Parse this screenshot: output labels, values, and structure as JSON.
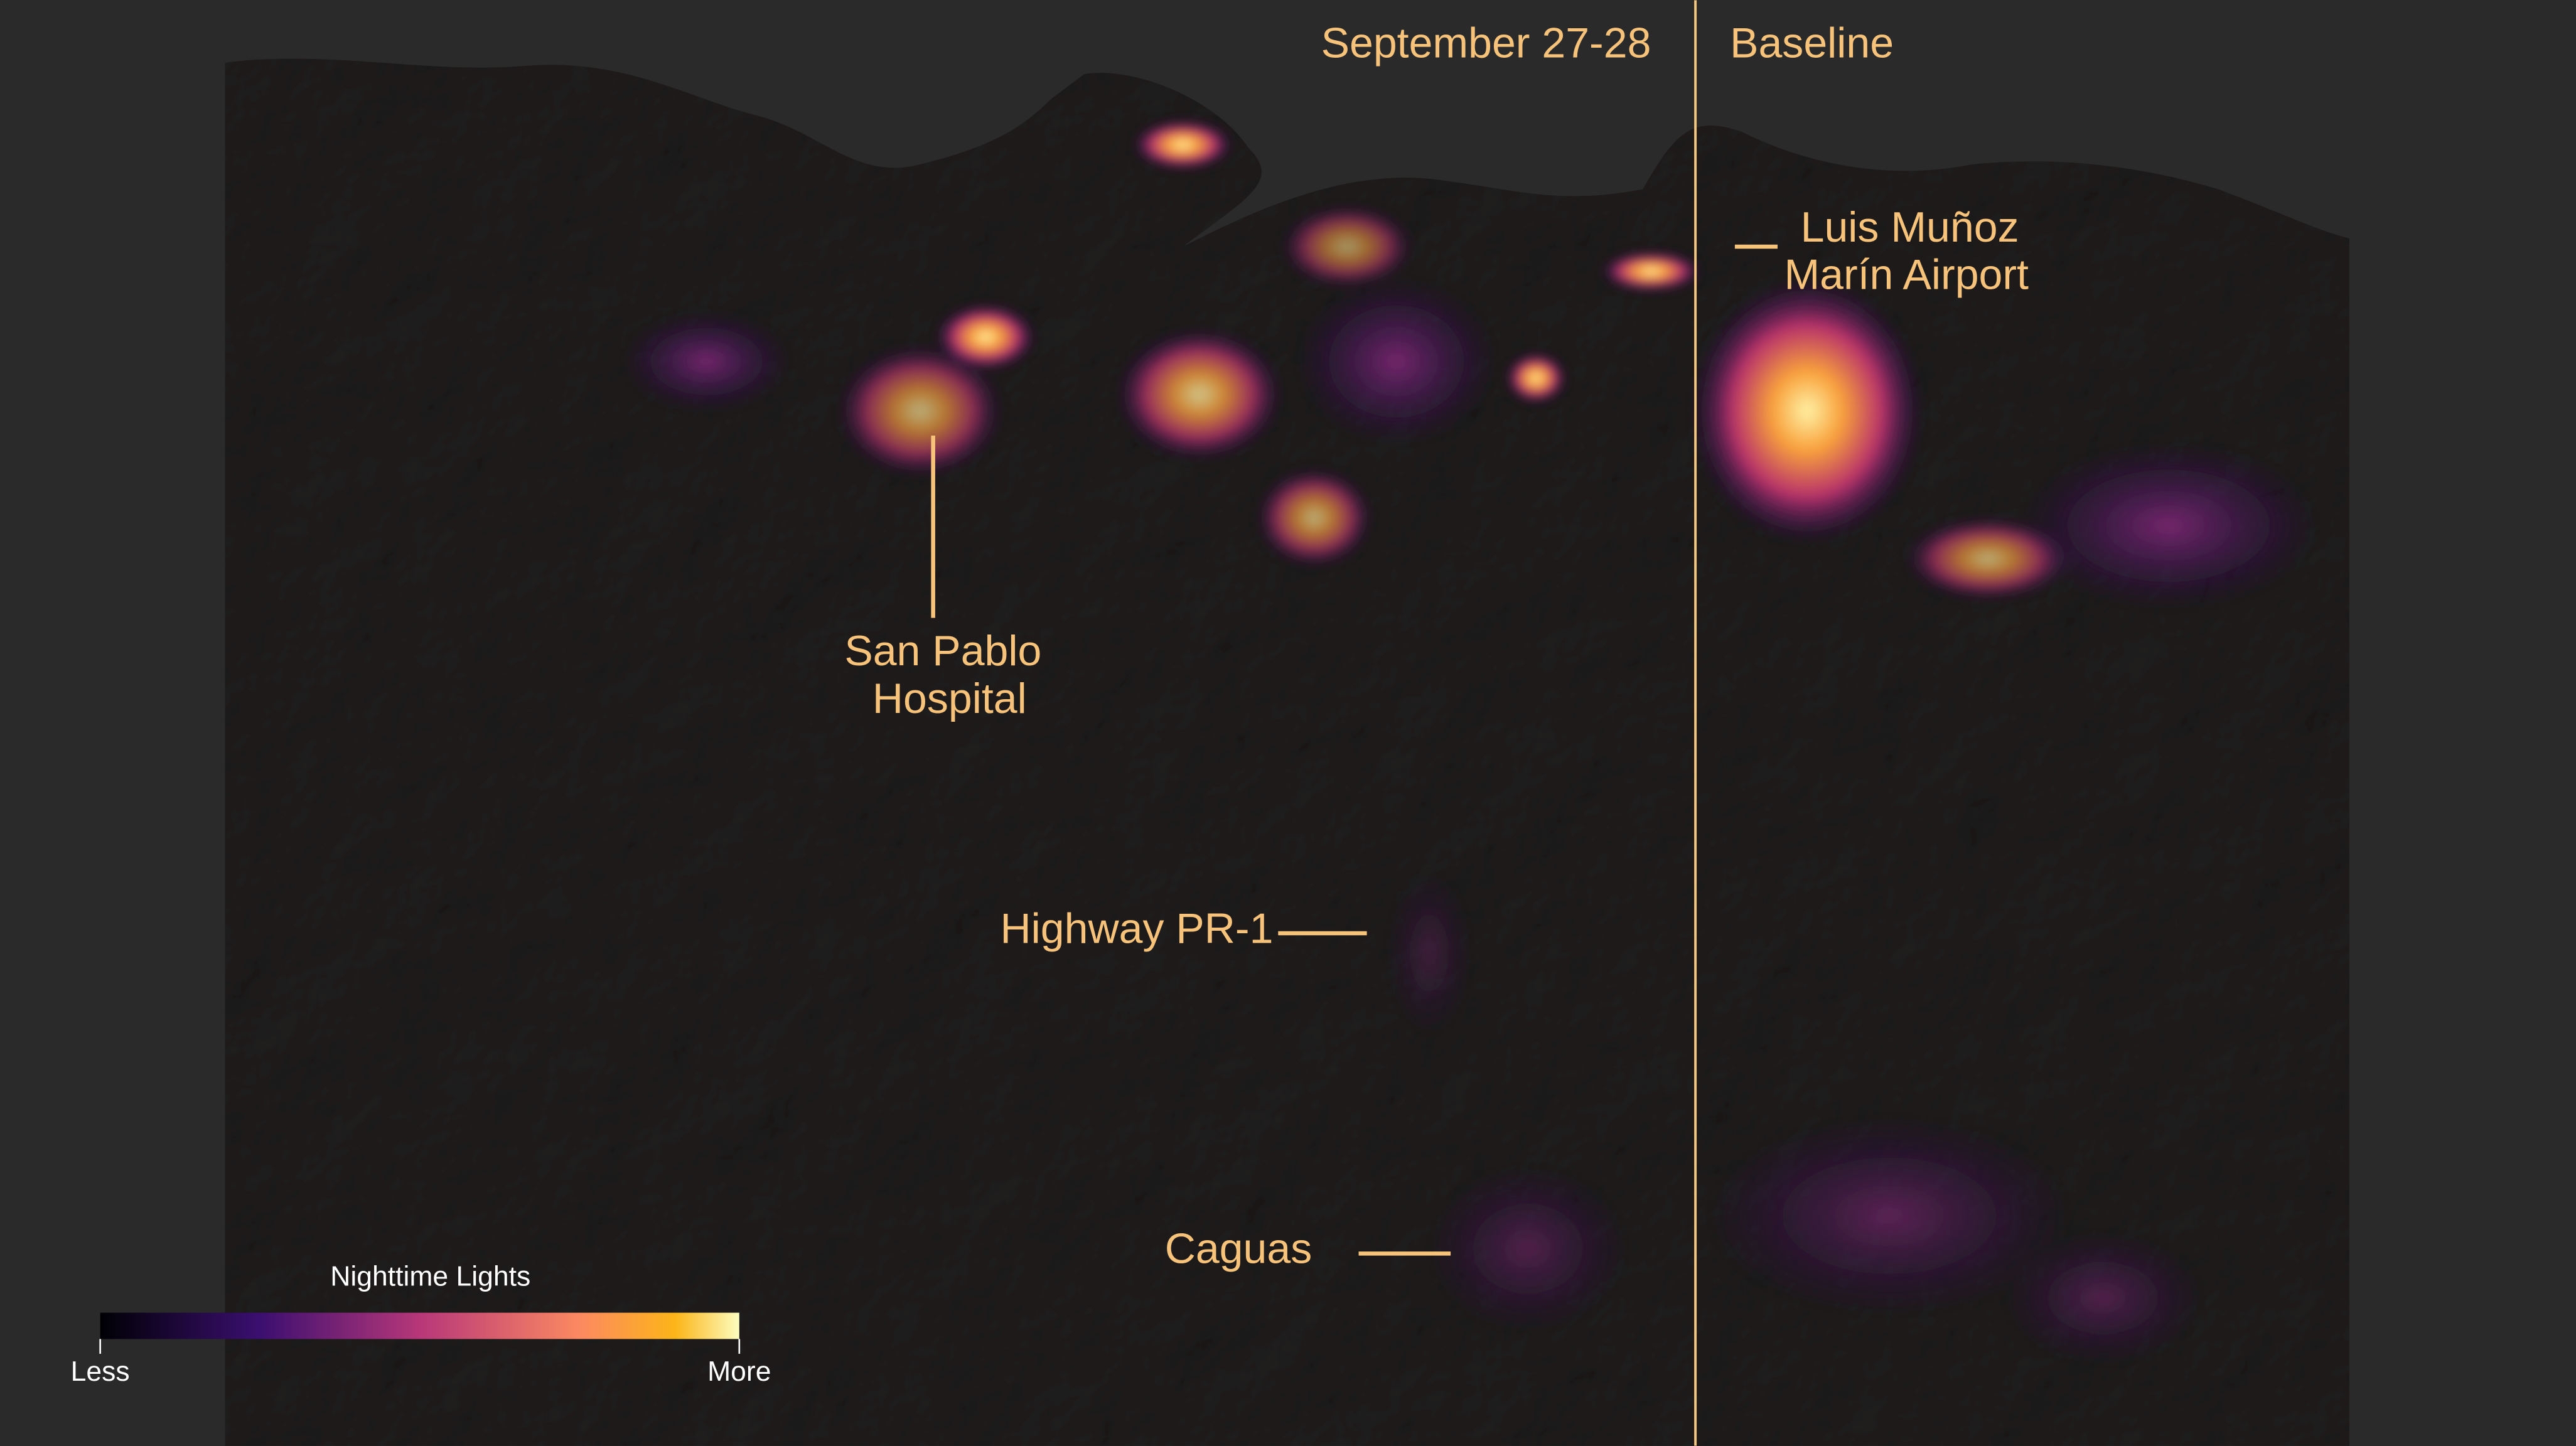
{
  "panels": {
    "left": "September 27-28",
    "right": "Baseline"
  },
  "annotations": [
    {
      "lines": [
        "Luis Muñoz",
        "Marín Airport"
      ]
    },
    {
      "lines": [
        "San Pablo",
        "Hospital"
      ]
    },
    {
      "lines": [
        "Highway PR-1"
      ]
    },
    {
      "lines": [
        "Caguas"
      ]
    }
  ],
  "legend": {
    "title": "Nighttime Lights",
    "min_label": "Less",
    "max_label": "More"
  }
}
